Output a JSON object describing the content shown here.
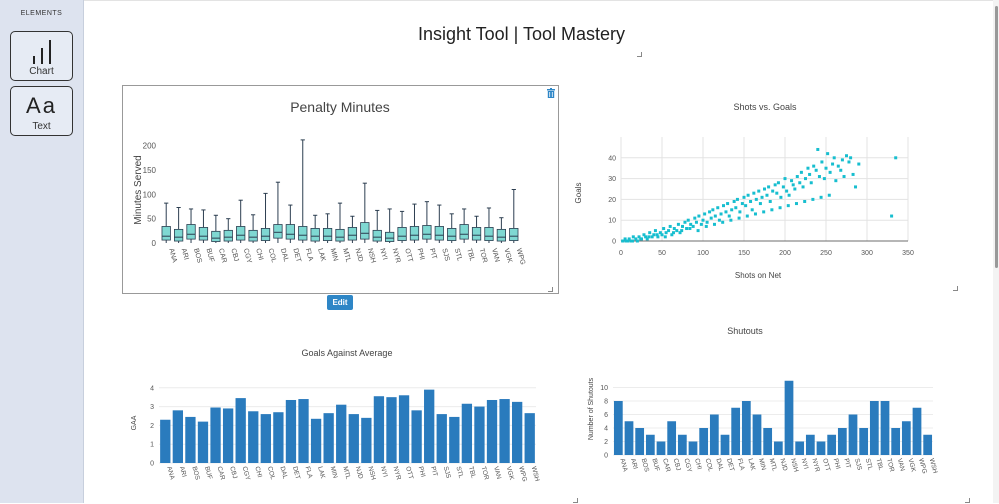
{
  "sidebar": {
    "header": "ELEMENTS",
    "tools": [
      {
        "label": "Chart",
        "icon": "bar-chart-icon"
      },
      {
        "label": "Text",
        "icon": "text-icon",
        "glyph": "Aa"
      }
    ]
  },
  "page": {
    "title": "Insight Tool | Tool Mastery"
  },
  "panel": {
    "edit_label": "Edit",
    "delete_icon": "trash-icon"
  },
  "colors": {
    "teal": "#7fd8d2",
    "box_stroke": "#2c3e50",
    "bar": "#2a7bbd",
    "scatter": "#17becf",
    "button": "#2e86c6"
  },
  "chart_data": [
    {
      "id": "penalty",
      "type": "box",
      "title": "Penalty Minutes",
      "xlabel": "",
      "ylabel": "Minutes Served",
      "ylim": [
        0,
        220
      ],
      "yticks": [
        0,
        50,
        100,
        150,
        200
      ],
      "categories": [
        "ANA",
        "ARI",
        "BOS",
        "BUF",
        "CAR",
        "CBJ",
        "CGY",
        "CHI",
        "COL",
        "DAL",
        "DET",
        "FLA",
        "LAK",
        "MIN",
        "MTL",
        "NJD",
        "NSH",
        "NYI",
        "NYR",
        "OTT",
        "PHI",
        "PIT",
        "SJS",
        "STL",
        "TBL",
        "TOR",
        "VAN",
        "VGK",
        "WPG"
      ],
      "boxes": [
        {
          "min": 0,
          "q1": 6,
          "median": 14,
          "q3": 34,
          "max": 82
        },
        {
          "min": 0,
          "q1": 4,
          "median": 12,
          "q3": 28,
          "max": 73
        },
        {
          "min": 0,
          "q1": 8,
          "median": 18,
          "q3": 38,
          "max": 70
        },
        {
          "min": 0,
          "q1": 6,
          "median": 14,
          "q3": 32,
          "max": 68
        },
        {
          "min": 0,
          "q1": 3,
          "median": 10,
          "q3": 24,
          "max": 57
        },
        {
          "min": 0,
          "q1": 4,
          "median": 12,
          "q3": 26,
          "max": 50
        },
        {
          "min": 0,
          "q1": 6,
          "median": 16,
          "q3": 34,
          "max": 88
        },
        {
          "min": 0,
          "q1": 4,
          "median": 12,
          "q3": 26,
          "max": 58
        },
        {
          "min": 0,
          "q1": 5,
          "median": 14,
          "q3": 30,
          "max": 102
        },
        {
          "min": 0,
          "q1": 10,
          "median": 22,
          "q3": 38,
          "max": 125
        },
        {
          "min": 0,
          "q1": 8,
          "median": 18,
          "q3": 38,
          "max": 78
        },
        {
          "min": 0,
          "q1": 6,
          "median": 16,
          "q3": 34,
          "max": 212
        },
        {
          "min": 0,
          "q1": 4,
          "median": 14,
          "q3": 30,
          "max": 57
        },
        {
          "min": 0,
          "q1": 5,
          "median": 14,
          "q3": 30,
          "max": 60
        },
        {
          "min": 0,
          "q1": 4,
          "median": 12,
          "q3": 28,
          "max": 82
        },
        {
          "min": 0,
          "q1": 6,
          "median": 16,
          "q3": 32,
          "max": 55
        },
        {
          "min": 0,
          "q1": 8,
          "median": 20,
          "q3": 42,
          "max": 123
        },
        {
          "min": 0,
          "q1": 4,
          "median": 12,
          "q3": 26,
          "max": 67
        },
        {
          "min": 0,
          "q1": 3,
          "median": 10,
          "q3": 22,
          "max": 70
        },
        {
          "min": 0,
          "q1": 5,
          "median": 14,
          "q3": 32,
          "max": 65
        },
        {
          "min": 0,
          "q1": 6,
          "median": 16,
          "q3": 34,
          "max": 80
        },
        {
          "min": 0,
          "q1": 8,
          "median": 18,
          "q3": 36,
          "max": 85
        },
        {
          "min": 0,
          "q1": 6,
          "median": 16,
          "q3": 34,
          "max": 78
        },
        {
          "min": 0,
          "q1": 5,
          "median": 14,
          "q3": 30,
          "max": 60
        },
        {
          "min": 0,
          "q1": 8,
          "median": 18,
          "q3": 38,
          "max": 70
        },
        {
          "min": 0,
          "q1": 6,
          "median": 16,
          "q3": 32,
          "max": 55
        },
        {
          "min": 0,
          "q1": 5,
          "median": 14,
          "q3": 32,
          "max": 72
        },
        {
          "min": 0,
          "q1": 4,
          "median": 12,
          "q3": 28,
          "max": 52
        },
        {
          "min": 0,
          "q1": 5,
          "median": 14,
          "q3": 30,
          "max": 110
        }
      ]
    },
    {
      "id": "shots",
      "type": "scatter",
      "title": "Shots vs. Goals",
      "xlabel": "Shots on Net",
      "ylabel": "Goals",
      "xlim": [
        0,
        350
      ],
      "ylim": [
        0,
        50
      ],
      "xticks": [
        0,
        50,
        100,
        150,
        200,
        250,
        300,
        350
      ],
      "yticks": [
        0,
        10,
        20,
        30,
        40
      ],
      "points": [
        [
          2,
          0
        ],
        [
          5,
          1
        ],
        [
          8,
          0
        ],
        [
          10,
          1
        ],
        [
          12,
          0
        ],
        [
          15,
          2
        ],
        [
          18,
          1
        ],
        [
          20,
          0
        ],
        [
          22,
          2
        ],
        [
          25,
          1
        ],
        [
          28,
          3
        ],
        [
          30,
          2
        ],
        [
          32,
          1
        ],
        [
          35,
          4
        ],
        [
          38,
          2
        ],
        [
          40,
          3
        ],
        [
          42,
          5
        ],
        [
          45,
          2
        ],
        [
          48,
          4
        ],
        [
          50,
          3
        ],
        [
          52,
          6
        ],
        [
          55,
          4
        ],
        [
          58,
          5
        ],
        [
          60,
          7
        ],
        [
          62,
          3
        ],
        [
          65,
          6
        ],
        [
          68,
          5
        ],
        [
          70,
          8
        ],
        [
          72,
          4
        ],
        [
          75,
          7
        ],
        [
          78,
          9
        ],
        [
          80,
          6
        ],
        [
          82,
          10
        ],
        [
          85,
          8
        ],
        [
          88,
          7
        ],
        [
          90,
          11
        ],
        [
          92,
          9
        ],
        [
          95,
          12
        ],
        [
          98,
          8
        ],
        [
          100,
          10
        ],
        [
          102,
          13
        ],
        [
          105,
          9
        ],
        [
          108,
          14
        ],
        [
          110,
          11
        ],
        [
          112,
          15
        ],
        [
          115,
          12
        ],
        [
          118,
          16
        ],
        [
          120,
          10
        ],
        [
          122,
          13
        ],
        [
          125,
          17
        ],
        [
          128,
          14
        ],
        [
          130,
          18
        ],
        [
          132,
          12
        ],
        [
          135,
          15
        ],
        [
          138,
          19
        ],
        [
          140,
          16
        ],
        [
          142,
          20
        ],
        [
          145,
          14
        ],
        [
          148,
          18
        ],
        [
          150,
          21
        ],
        [
          152,
          17
        ],
        [
          155,
          22
        ],
        [
          158,
          19
        ],
        [
          160,
          15
        ],
        [
          162,
          23
        ],
        [
          165,
          20
        ],
        [
          168,
          24
        ],
        [
          170,
          18
        ],
        [
          172,
          21
        ],
        [
          175,
          25
        ],
        [
          178,
          22
        ],
        [
          180,
          26
        ],
        [
          182,
          19
        ],
        [
          185,
          24
        ],
        [
          188,
          27
        ],
        [
          190,
          23
        ],
        [
          192,
          28
        ],
        [
          195,
          21
        ],
        [
          198,
          26
        ],
        [
          200,
          30
        ],
        [
          202,
          24
        ],
        [
          205,
          22
        ],
        [
          208,
          29
        ],
        [
          210,
          27
        ],
        [
          212,
          25
        ],
        [
          215,
          31
        ],
        [
          218,
          28
        ],
        [
          220,
          33
        ],
        [
          222,
          26
        ],
        [
          225,
          30
        ],
        [
          228,
          35
        ],
        [
          230,
          32
        ],
        [
          232,
          28
        ],
        [
          235,
          36
        ],
        [
          238,
          34
        ],
        [
          240,
          44
        ],
        [
          242,
          31
        ],
        [
          245,
          38
        ],
        [
          248,
          30
        ],
        [
          250,
          35
        ],
        [
          252,
          42
        ],
        [
          255,
          33
        ],
        [
          258,
          37
        ],
        [
          260,
          40
        ],
        [
          262,
          29
        ],
        [
          265,
          36
        ],
        [
          268,
          34
        ],
        [
          270,
          39
        ],
        [
          272,
          31
        ],
        [
          275,
          41
        ],
        [
          278,
          38
        ],
        [
          280,
          40
        ],
        [
          283,
          32
        ],
        [
          286,
          26
        ],
        [
          290,
          37
        ],
        [
          330,
          12
        ],
        [
          335,
          40
        ],
        [
          6,
          0
        ],
        [
          14,
          0
        ],
        [
          24,
          1
        ],
        [
          34,
          2
        ],
        [
          44,
          3
        ],
        [
          54,
          2
        ],
        [
          64,
          4
        ],
        [
          74,
          5
        ],
        [
          84,
          6
        ],
        [
          94,
          5
        ],
        [
          104,
          7
        ],
        [
          114,
          8
        ],
        [
          124,
          9
        ],
        [
          134,
          10
        ],
        [
          144,
          11
        ],
        [
          154,
          12
        ],
        [
          164,
          13
        ],
        [
          174,
          14
        ],
        [
          184,
          15
        ],
        [
          194,
          16
        ],
        [
          204,
          17
        ],
        [
          214,
          18
        ],
        [
          224,
          19
        ],
        [
          234,
          20
        ],
        [
          244,
          21
        ],
        [
          254,
          22
        ]
      ]
    },
    {
      "id": "gaa",
      "type": "bar",
      "title": "Goals Against Average",
      "xlabel": "",
      "ylabel": "GAA",
      "ylim": [
        0,
        4.2
      ],
      "yticks": [
        0,
        1,
        2,
        3,
        4
      ],
      "categories": [
        "ANA",
        "ARI",
        "BOS",
        "BUF",
        "CAR",
        "CBJ",
        "CGY",
        "CHI",
        "COL",
        "DAL",
        "DET",
        "FLA",
        "LAK",
        "MIN",
        "MTL",
        "NJD",
        "NSH",
        "NYI",
        "NYR",
        "OTT",
        "PHI",
        "PIT",
        "SJS",
        "STL",
        "TBL",
        "TOR",
        "VAN",
        "VGK",
        "WPG",
        "WSH"
      ],
      "values": [
        2.3,
        2.8,
        2.45,
        2.2,
        2.95,
        2.9,
        3.45,
        2.75,
        2.6,
        2.7,
        3.35,
        3.4,
        2.35,
        2.65,
        3.1,
        2.6,
        2.4,
        3.55,
        3.5,
        3.6,
        2.8,
        3.9,
        2.6,
        2.45,
        3.15,
        3.0,
        3.35,
        3.4,
        3.25,
        2.65
      ]
    },
    {
      "id": "shutouts",
      "type": "bar",
      "title": "Shutouts",
      "xlabel": "",
      "ylabel": "Number of Shutouts",
      "ylim": [
        0,
        12
      ],
      "yticks": [
        0,
        2,
        4,
        6,
        8,
        10
      ],
      "categories": [
        "ANA",
        "ARI",
        "BOS",
        "BUF",
        "CAR",
        "CBJ",
        "CGY",
        "CHI",
        "COL",
        "DAL",
        "DET",
        "FLA",
        "LAK",
        "MIN",
        "MTL",
        "NJD",
        "NSH",
        "NYI",
        "NYR",
        "OTT",
        "PHI",
        "PIT",
        "SJS",
        "STL",
        "TBL",
        "TOR",
        "VAN",
        "VGK",
        "WPG",
        "WSH"
      ],
      "values": [
        8,
        5,
        4,
        3,
        2,
        5,
        3,
        2,
        4,
        6,
        3,
        7,
        8,
        6,
        4,
        2,
        11,
        2,
        3,
        2,
        3,
        4,
        6,
        4,
        8,
        8,
        4,
        5,
        7,
        3
      ]
    }
  ]
}
